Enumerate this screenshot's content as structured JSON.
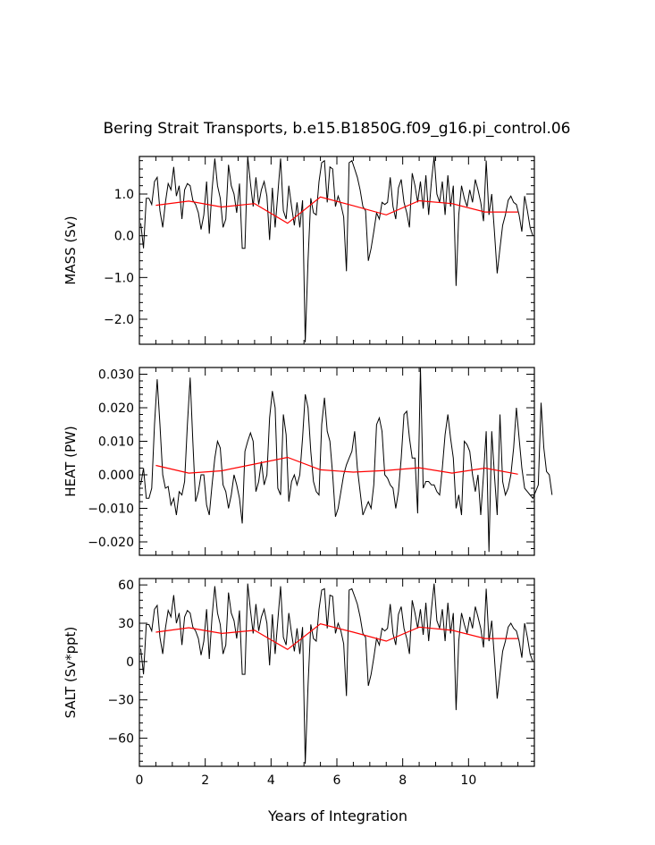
{
  "chart_title": "Bering Strait Transports, b.e15.B1850G.f09_g16.pi_control.06",
  "xlabel": "Years of Integration",
  "xlim": [
    0,
    12
  ],
  "xticks": [
    0,
    2,
    4,
    6,
    8,
    10
  ],
  "xtick_labels": [
    "0",
    "2",
    "4",
    "6",
    "8",
    "10"
  ],
  "colors": {
    "monthly": "#000000",
    "annual_mean": "#ff0000",
    "frame": "#000000"
  },
  "chart_data": [
    {
      "type": "line",
      "id": "mass",
      "ylabel": "MASS (Sv)",
      "ylim": [
        -2.6,
        1.9
      ],
      "yticks": [
        1.0,
        0.0,
        -1.0,
        -2.0
      ],
      "ytick_labels": [
        "1.0",
        "0.0",
        "−1.0",
        "−2.0"
      ],
      "x_start": 0.0417,
      "x_step": 0.0833,
      "monthly": [
        0.3,
        -0.3,
        0.9,
        0.9,
        0.75,
        1.3,
        1.4,
        0.6,
        0.2,
        0.8,
        1.25,
        1.1,
        1.65,
        0.95,
        1.2,
        0.4,
        1.1,
        1.25,
        1.2,
        0.85,
        0.75,
        0.55,
        0.15,
        0.5,
        1.3,
        0.05,
        1.1,
        1.85,
        1.2,
        0.9,
        0.2,
        0.4,
        1.7,
        1.2,
        1.0,
        0.55,
        1.25,
        -0.3,
        -0.3,
        1.9,
        1.25,
        0.7,
        1.4,
        0.75,
        1.1,
        1.3,
        0.95,
        -0.1,
        1.15,
        0.2,
        1.0,
        1.85,
        0.6,
        0.4,
        1.2,
        0.7,
        0.25,
        0.8,
        0.2,
        0.85,
        -2.55,
        -0.6,
        0.9,
        0.55,
        0.5,
        1.3,
        1.75,
        1.8,
        0.8,
        1.65,
        1.6,
        0.7,
        0.95,
        0.75,
        0.45,
        -0.85,
        1.75,
        1.8,
        1.6,
        1.4,
        1.1,
        0.7,
        0.6,
        -0.6,
        -0.3,
        0.1,
        0.55,
        0.4,
        0.8,
        0.75,
        0.8,
        1.4,
        0.7,
        0.4,
        1.15,
        1.35,
        0.8,
        0.55,
        0.2,
        1.5,
        1.2,
        0.8,
        1.3,
        0.65,
        1.45,
        0.5,
        1.3,
        1.9,
        1.0,
        0.8,
        1.3,
        0.5,
        1.45,
        0.7,
        1.2,
        -1.2,
        0.5,
        1.2,
        0.9,
        0.7,
        1.1,
        0.8,
        1.35,
        1.1,
        0.8,
        0.35,
        1.8,
        0.5,
        1.0,
        0.1,
        -0.9,
        -0.3,
        0.25,
        0.5,
        0.85,
        0.95,
        0.8,
        0.75,
        0.5,
        0.1,
        0.95,
        0.6,
        0.2,
        0.0
      ],
      "annual_x": [
        0.5,
        1.5,
        2.5,
        3.5,
        4.5,
        5.5,
        6.5,
        7.5,
        8.5,
        9.5,
        10.5,
        11.5
      ],
      "annual": [
        0.73,
        0.83,
        0.69,
        0.77,
        0.3,
        0.93,
        0.72,
        0.5,
        0.84,
        0.77,
        0.57,
        0.57
      ]
    },
    {
      "type": "line",
      "id": "heat",
      "ylabel": "HEAT (PW)",
      "ylim": [
        -0.024,
        0.032
      ],
      "yticks": [
        0.03,
        0.02,
        0.01,
        0.0,
        -0.01,
        -0.02
      ],
      "ytick_labels": [
        "0.030",
        "0.020",
        "0.010",
        "0.000",
        "−0.010",
        "−0.020"
      ],
      "x_start": 0.0417,
      "x_step": 0.0833,
      "monthly": [
        -0.003,
        0.002,
        -0.007,
        -0.007,
        -0.004,
        0.015,
        0.0285,
        0.015,
        0.0,
        -0.004,
        -0.0035,
        -0.009,
        -0.007,
        -0.012,
        -0.005,
        -0.006,
        -0.002,
        0.015,
        0.029,
        0.01,
        -0.008,
        -0.005,
        0.0,
        0.0,
        -0.009,
        -0.012,
        -0.003,
        0.005,
        0.01,
        0.008,
        -0.003,
        -0.005,
        -0.01,
        -0.006,
        0.0,
        -0.003,
        -0.007,
        -0.0145,
        0.007,
        0.01,
        0.0125,
        0.01,
        -0.005,
        -0.002,
        0.004,
        -0.003,
        0.0,
        0.017,
        0.025,
        0.02,
        -0.004,
        -0.006,
        0.018,
        0.012,
        -0.008,
        -0.002,
        0.0,
        -0.003,
        0.0,
        0.011,
        0.024,
        0.02,
        0.007,
        -0.002,
        -0.005,
        -0.006,
        0.015,
        0.023,
        0.013,
        0.01,
        0.0,
        -0.0125,
        -0.01,
        -0.005,
        0.0,
        0.003,
        0.005,
        0.007,
        0.013,
        0.002,
        -0.005,
        -0.012,
        -0.01,
        -0.008,
        -0.01,
        -0.003,
        0.015,
        0.017,
        0.013,
        0.0,
        -0.001,
        -0.003,
        -0.004,
        -0.01,
        -0.005,
        0.005,
        0.018,
        0.019,
        0.011,
        0.005,
        0.005,
        -0.0115,
        0.032,
        -0.004,
        -0.002,
        -0.002,
        -0.003,
        -0.003,
        -0.005,
        -0.006,
        0.002,
        0.012,
        0.018,
        0.011,
        0.005,
        -0.01,
        -0.006,
        -0.012,
        0.01,
        0.009,
        0.007,
        0.0,
        -0.005,
        -0.0,
        -0.012,
        0.0,
        0.013,
        -0.023,
        0.013,
        0.0,
        -0.012,
        0.018,
        -0.002,
        -0.006,
        -0.004,
        0.0,
        0.008,
        0.02,
        0.011,
        0.002,
        -0.004,
        -0.005,
        -0.006,
        -0.007,
        -0.005,
        -0.003,
        0.0215,
        0.008,
        0.001,
        0.0,
        -0.006
      ],
      "annual_x": [
        0.5,
        1.5,
        2.5,
        3.5,
        4.5,
        5.5,
        6.5,
        7.5,
        8.5,
        9.5,
        10.5,
        11.5
      ],
      "annual": [
        0.0028,
        0.0005,
        0.0012,
        0.0032,
        0.0052,
        0.0015,
        0.0008,
        0.0013,
        0.0021,
        0.0005,
        0.002,
        0.0002
      ]
    },
    {
      "type": "line",
      "id": "salt",
      "ylabel": "SALT (Sv*ppt)",
      "ylim": [
        -82,
        65
      ],
      "yticks": [
        60,
        30,
        0,
        -30,
        -60
      ],
      "ytick_labels": [
        "60",
        "30",
        "0",
        "−30",
        "−60"
      ],
      "x_start": 0.0417,
      "x_step": 0.0833,
      "monthly": [
        10,
        -10,
        29,
        29,
        24,
        41,
        44,
        19,
        6,
        26,
        40,
        35,
        52,
        30,
        38,
        13,
        35,
        40,
        38,
        27,
        24,
        18,
        5,
        16,
        41,
        2,
        35,
        59,
        38,
        29,
        6,
        13,
        54,
        38,
        32,
        18,
        40,
        -10,
        -10,
        61,
        40,
        22,
        45,
        24,
        35,
        41,
        30,
        -3,
        37,
        6,
        32,
        59,
        19,
        13,
        38,
        22,
        8,
        26,
        6,
        27,
        -80,
        -19,
        29,
        18,
        16,
        41,
        56,
        57,
        26,
        52,
        51,
        22,
        30,
        24,
        14,
        -27,
        56,
        57,
        51,
        45,
        35,
        22,
        19,
        -19,
        -10,
        3,
        18,
        13,
        26,
        24,
        26,
        45,
        22,
        13,
        37,
        43,
        26,
        18,
        6,
        48,
        38,
        26,
        41,
        21,
        46,
        16,
        41,
        61,
        32,
        26,
        41,
        16,
        46,
        22,
        38,
        -38,
        16,
        38,
        29,
        22,
        35,
        26,
        43,
        35,
        26,
        11,
        57,
        16,
        32,
        3,
        -29,
        -10,
        8,
        16,
        27,
        30,
        26,
        24,
        16,
        3,
        30,
        19,
        6,
        0
      ],
      "annual_x": [
        0.5,
        1.5,
        2.5,
        3.5,
        4.5,
        5.5,
        6.5,
        7.5,
        8.5,
        9.5,
        10.5,
        11.5
      ],
      "annual": [
        23,
        26.5,
        22,
        24.5,
        9.5,
        29.5,
        23,
        16,
        27,
        24.5,
        18,
        18
      ]
    }
  ]
}
